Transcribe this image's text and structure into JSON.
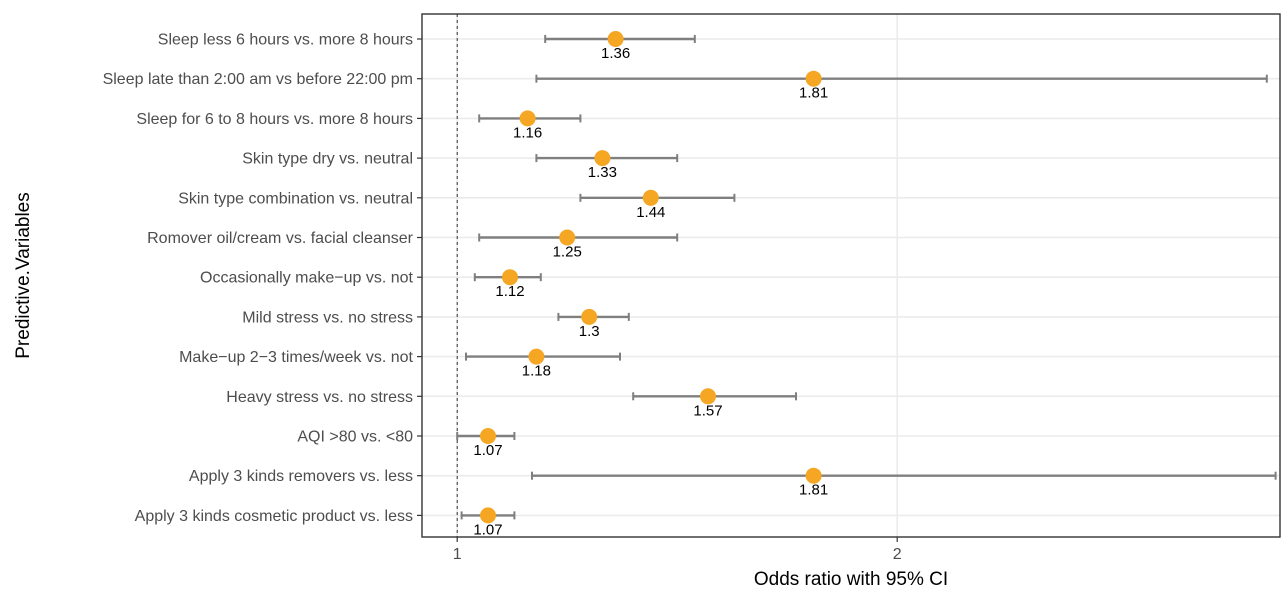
{
  "chart_data": {
    "type": "scatter",
    "subtype": "forest-plot",
    "title": "",
    "xlabel": "Odds ratio with 95% CI",
    "ylabel": "Predictive.Variables",
    "xlim": [
      0.92,
      2.87
    ],
    "xticks": [
      1,
      2
    ],
    "xtick_labels": [
      "1",
      "2"
    ],
    "reference_line": 1,
    "grid": true,
    "legend": "none",
    "point_color": "#F5A623",
    "ci_color": "#7f7f7f",
    "rows": [
      {
        "label": "Sleep less 6 hours vs. more 8 hours",
        "or": 1.36,
        "or_label": "1.36",
        "lower": 1.2,
        "upper": 1.54
      },
      {
        "label": "Sleep late than 2:00 am vs  before 22:00 pm",
        "or": 1.81,
        "or_label": "1.81",
        "lower": 1.18,
        "upper": 2.84
      },
      {
        "label": "Sleep for 6 to 8 hours vs. more 8 hours",
        "or": 1.16,
        "or_label": "1.16",
        "lower": 1.05,
        "upper": 1.28
      },
      {
        "label": "Skin type dry vs. neutral",
        "or": 1.33,
        "or_label": "1.33",
        "lower": 1.18,
        "upper": 1.5
      },
      {
        "label": "Skin type combination vs. neutral",
        "or": 1.44,
        "or_label": "1.44",
        "lower": 1.28,
        "upper": 1.63
      },
      {
        "label": "Romover oil/cream vs. facial cleanser",
        "or": 1.25,
        "or_label": "1.25",
        "lower": 1.05,
        "upper": 1.5
      },
      {
        "label": "Occasionally make−up vs. not",
        "or": 1.12,
        "or_label": "1.12",
        "lower": 1.04,
        "upper": 1.19
      },
      {
        "label": "Mild stress vs. no stress",
        "or": 1.3,
        "or_label": "1.3",
        "lower": 1.23,
        "upper": 1.39
      },
      {
        "label": "Make−up  2−3 times/week vs. not",
        "or": 1.18,
        "or_label": "1.18",
        "lower": 1.02,
        "upper": 1.37
      },
      {
        "label": "Heavy stress vs. no stress",
        "or": 1.57,
        "or_label": "1.57",
        "lower": 1.4,
        "upper": 1.77
      },
      {
        "label": "AQI >80 vs. <80",
        "or": 1.07,
        "or_label": "1.07",
        "lower": 1.0,
        "upper": 1.13
      },
      {
        "label": "Apply 3 kinds removers vs. less",
        "or": 1.81,
        "or_label": "1.81",
        "lower": 1.17,
        "upper": 2.86
      },
      {
        "label": "Apply 3 kinds cosmetic product vs. less",
        "or": 1.07,
        "or_label": "1.07",
        "lower": 1.01,
        "upper": 1.13
      }
    ]
  }
}
